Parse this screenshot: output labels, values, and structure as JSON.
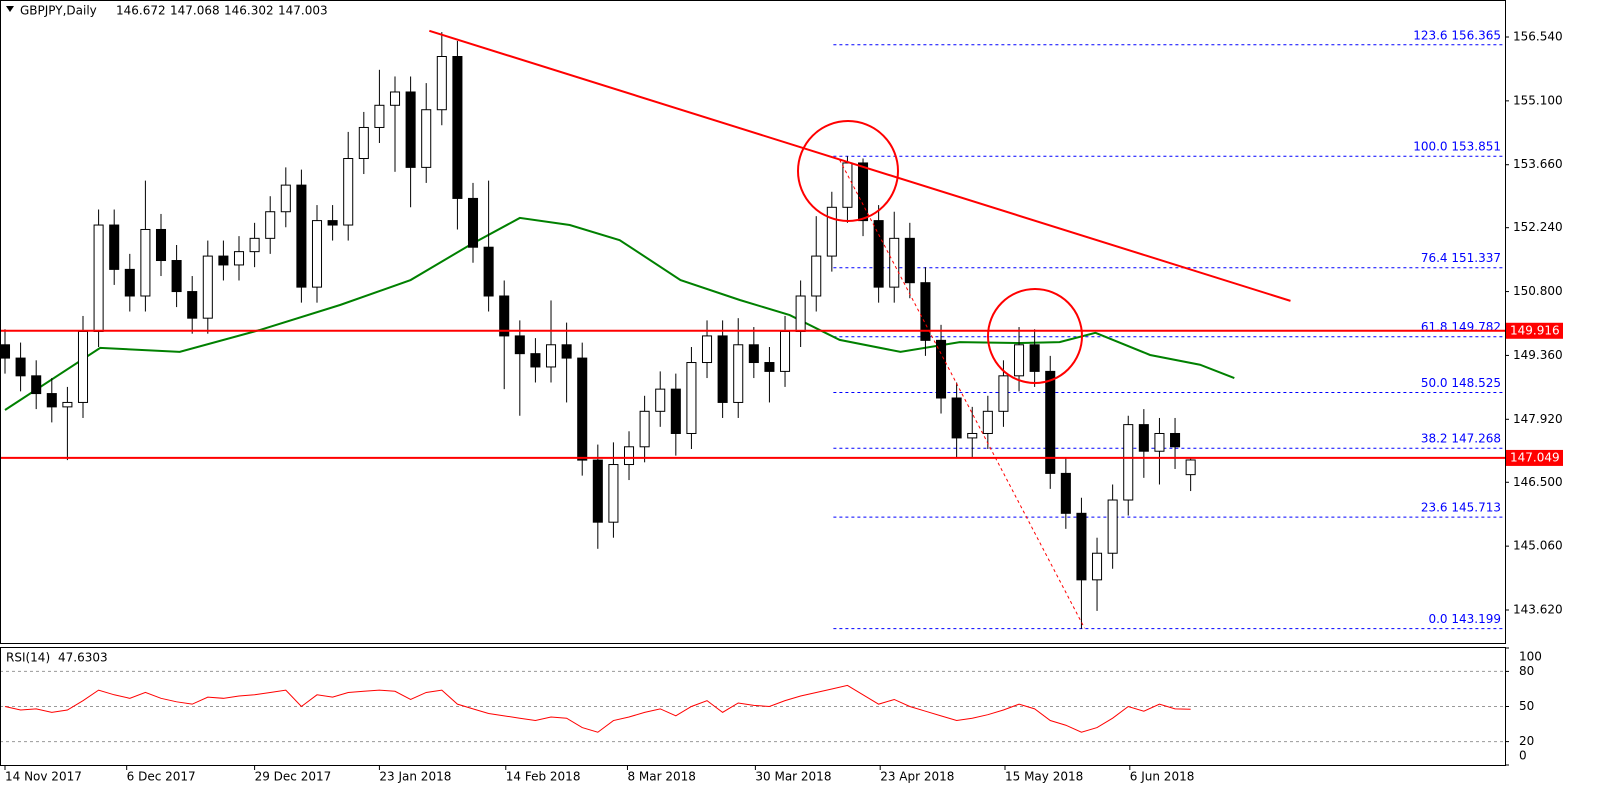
{
  "chart_data": [
    {
      "type": "candlestick",
      "title": "GBPJPY,Daily",
      "x": [
        0,
        1,
        2,
        3,
        4,
        5,
        6,
        7,
        8,
        9,
        10,
        11,
        12,
        13,
        14,
        15,
        16,
        17,
        18,
        19,
        20,
        21,
        22,
        23,
        24,
        25,
        26,
        27,
        28,
        29,
        30,
        31,
        32,
        33,
        34,
        35,
        36,
        37,
        38,
        39,
        40,
        41,
        42,
        43,
        44,
        45,
        46,
        47,
        48,
        49,
        50,
        51,
        52,
        53,
        54,
        55,
        56,
        57,
        58,
        59,
        60,
        61,
        62,
        63,
        64,
        65,
        66,
        67,
        68,
        69,
        70,
        71,
        72,
        73,
        74,
        75,
        76
      ],
      "open": [
        149.6,
        149.3,
        148.9,
        148.5,
        148.2,
        148.3,
        149.9,
        152.3,
        151.3,
        150.7,
        152.2,
        151.5,
        150.8,
        150.2,
        151.6,
        151.4,
        151.7,
        152.0,
        152.6,
        153.2,
        150.9,
        152.4,
        152.3,
        153.8,
        154.5,
        155.0,
        155.3,
        153.6,
        154.9,
        156.1,
        152.9,
        151.8,
        150.7,
        149.8,
        149.4,
        149.1,
        149.6,
        149.3,
        147.0,
        145.6,
        146.9,
        147.3,
        148.1,
        148.6,
        147.6,
        149.2,
        149.8,
        148.3,
        149.6,
        149.2,
        149.0,
        149.9,
        150.7,
        151.6,
        152.7,
        153.7,
        152.4,
        150.9,
        152.0,
        151.0,
        149.7,
        148.4,
        147.5,
        147.6,
        148.1,
        148.9,
        149.6,
        149.0,
        146.7,
        145.8,
        144.3,
        144.9,
        146.1,
        147.8,
        147.2,
        147.6,
        146.672
      ],
      "high": [
        149.95,
        149.65,
        149.25,
        148.85,
        148.65,
        150.25,
        152.65,
        152.65,
        151.65,
        153.3,
        152.55,
        151.85,
        151.15,
        151.95,
        151.95,
        152.05,
        152.35,
        152.95,
        153.6,
        153.55,
        152.75,
        152.75,
        154.4,
        154.85,
        155.8,
        155.65,
        155.65,
        155.5,
        156.65,
        156.45,
        153.25,
        153.3,
        151.05,
        150.15,
        149.75,
        150.6,
        150.1,
        149.65,
        147.35,
        147.4,
        147.65,
        148.45,
        149.0,
        148.95,
        149.55,
        150.15,
        150.15,
        150.2,
        150.0,
        149.55,
        150.25,
        151.05,
        152.5,
        153.05,
        153.85,
        153.8,
        152.75,
        152.6,
        152.35,
        151.35,
        150.05,
        148.75,
        148.2,
        148.45,
        149.25,
        150.0,
        149.95,
        149.35,
        147.05,
        146.15,
        145.25,
        146.45,
        148.0,
        148.15,
        147.95,
        147.95,
        147.068
      ],
      "low": [
        148.95,
        148.55,
        148.15,
        147.85,
        147.0,
        147.95,
        149.55,
        150.95,
        150.35,
        150.35,
        151.15,
        150.45,
        149.85,
        149.85,
        151.05,
        151.05,
        151.35,
        151.65,
        152.25,
        150.55,
        150.55,
        151.95,
        151.95,
        153.45,
        154.15,
        153.5,
        152.7,
        153.25,
        154.55,
        152.2,
        151.45,
        150.35,
        148.6,
        148.0,
        148.75,
        148.75,
        148.3,
        146.65,
        145.0,
        145.25,
        146.55,
        146.95,
        147.75,
        147.1,
        147.25,
        148.85,
        147.95,
        147.95,
        148.85,
        148.3,
        148.65,
        149.55,
        150.35,
        151.25,
        152.35,
        152.05,
        150.55,
        150.55,
        150.65,
        149.35,
        148.05,
        147.05,
        147.05,
        147.25,
        147.75,
        148.55,
        148.65,
        146.35,
        145.45,
        143.2,
        143.6,
        144.55,
        145.75,
        146.6,
        146.45,
        146.8,
        146.302
      ],
      "close": [
        149.3,
        148.9,
        148.5,
        148.2,
        148.3,
        149.9,
        152.3,
        151.3,
        150.7,
        152.2,
        151.5,
        150.8,
        150.2,
        151.6,
        151.4,
        151.7,
        152.0,
        152.6,
        153.2,
        150.9,
        152.4,
        152.3,
        153.8,
        154.5,
        155.0,
        155.3,
        153.6,
        154.9,
        156.1,
        152.9,
        151.8,
        150.7,
        149.8,
        149.4,
        149.1,
        149.6,
        149.3,
        147.0,
        145.6,
        146.9,
        147.3,
        148.1,
        148.6,
        147.6,
        149.2,
        149.8,
        148.3,
        149.6,
        149.2,
        149.0,
        149.9,
        150.7,
        151.6,
        152.7,
        153.7,
        152.4,
        150.9,
        152.0,
        151.0,
        149.7,
        148.4,
        147.5,
        147.6,
        148.1,
        148.9,
        149.6,
        149.0,
        146.7,
        145.8,
        144.3,
        144.9,
        146.1,
        147.8,
        147.2,
        147.6,
        147.3,
        147.003
      ],
      "bull_color": "#ffffff",
      "bear_color": "#000000",
      "ma": {
        "color": "#008000",
        "x": [
          0,
          6.1,
          11.2,
          16.3,
          21.5,
          26,
          29.8,
          33,
          36.2,
          39.4,
          43.3,
          47.1,
          50.3,
          53.5,
          57.4,
          61.2,
          65.1,
          67.6,
          69.9,
          73.4,
          76.6,
          78.8
        ],
        "values": [
          148.13,
          149.53,
          149.44,
          149.93,
          150.5,
          151.06,
          151.85,
          152.46,
          152.3,
          151.96,
          151.06,
          150.61,
          150.27,
          149.71,
          149.44,
          149.66,
          149.64,
          149.66,
          149.87,
          149.37,
          149.15,
          148.85
        ]
      },
      "trendline": {
        "color": "#ff0000",
        "x": [
          27.2,
          82.4
        ],
        "values": [
          156.68,
          150.59
        ]
      },
      "fib_trend": {
        "color": "#ff0000",
        "x": [
          53.5,
          69.2
        ],
        "values": [
          153.77,
          143.21
        ]
      },
      "hlines": {
        "color": "#ff0000",
        "values": [
          149.916,
          147.049
        ]
      },
      "fib": {
        "color": "#0000ff",
        "x_start": 53.1,
        "levels": [
          {
            "label": "123.6 156.365",
            "value": 156.365
          },
          {
            "label": "100.0 153.851",
            "value": 153.851
          },
          {
            "label": "76.4 151.337",
            "value": 151.337
          },
          {
            "label": "61.8 149.782",
            "value": 149.782
          },
          {
            "label": "50.0 148.525",
            "value": 148.525
          },
          {
            "label": "38.2 147.268",
            "value": 147.268
          },
          {
            "label": "23.6 145.713",
            "value": 145.713
          },
          {
            "label": "0.0 143.199",
            "value": 143.199
          }
        ]
      },
      "xlim": [
        -0.32,
        96.15
      ],
      "ylim": [
        142.876,
        157.374
      ],
      "yticks": [
        {
          "value": 156.54,
          "label": "156.540"
        },
        {
          "value": 155.1,
          "label": "155.100"
        },
        {
          "value": 153.66,
          "label": "153.660"
        },
        {
          "value": 152.24,
          "label": "152.240"
        },
        {
          "value": 150.8,
          "label": "150.800"
        },
        {
          "value": 149.36,
          "label": "149.360"
        },
        {
          "value": 147.92,
          "label": "147.920"
        },
        {
          "value": 146.5,
          "label": "146.500"
        },
        {
          "value": 145.06,
          "label": "145.060"
        },
        {
          "value": 143.62,
          "label": "143.620"
        }
      ],
      "xticks": [
        {
          "value": 0,
          "label": "14 Nov 2017"
        },
        {
          "value": 7.8,
          "label": "6 Dec 2017"
        },
        {
          "value": 16.0,
          "label": "29 Dec 2017"
        },
        {
          "value": 24.0,
          "label": "23 Jan 2018"
        },
        {
          "value": 32.1,
          "label": "14 Feb 2018"
        },
        {
          "value": 39.9,
          "label": "8 Mar 2018"
        },
        {
          "value": 48.1,
          "label": "30 Mar 2018"
        },
        {
          "value": 56.1,
          "label": "23 Apr 2018"
        },
        {
          "value": 64.1,
          "label": "15 May 2018"
        },
        {
          "value": 72.1,
          "label": "6 Jun 2018"
        }
      ]
    },
    {
      "type": "line",
      "title": "RSI(14)",
      "color": "#ff0000",
      "x": [
        0,
        1,
        2,
        3,
        4,
        5,
        6,
        7,
        8,
        9,
        10,
        11,
        12,
        13,
        14,
        15,
        16,
        17,
        18,
        19,
        20,
        21,
        22,
        23,
        24,
        25,
        26,
        27,
        28,
        29,
        30,
        31,
        32,
        33,
        34,
        35,
        36,
        37,
        38,
        39,
        40,
        41,
        42,
        43,
        44,
        45,
        46,
        47,
        48,
        49,
        50,
        51,
        52,
        53,
        54,
        55,
        56,
        57,
        58,
        59,
        60,
        61,
        62,
        63,
        64,
        65,
        66,
        67,
        68,
        69,
        70,
        71,
        72,
        73,
        74,
        75,
        76
      ],
      "values": [
        50,
        47,
        48,
        45,
        47,
        55,
        64,
        60,
        57,
        62,
        57,
        54,
        52,
        58,
        57,
        59,
        60,
        62,
        64,
        50,
        60,
        58,
        62,
        63,
        64,
        63,
        56,
        62,
        64,
        52,
        48,
        44,
        42,
        40,
        38,
        41,
        40,
        32,
        28,
        38,
        41,
        45,
        48,
        42,
        50,
        55,
        45,
        53,
        51,
        50,
        55,
        59,
        62,
        65,
        68,
        60,
        52,
        56,
        50,
        46,
        42,
        38,
        40,
        43,
        47,
        52,
        48,
        38,
        34,
        28,
        32,
        40,
        50,
        46,
        52,
        48,
        47.6303
      ],
      "xlim": [
        -0.32,
        96.15
      ],
      "ylim": [
        0,
        100
      ],
      "yticks": [
        0,
        20,
        50,
        80,
        100
      ]
    }
  ]
}
